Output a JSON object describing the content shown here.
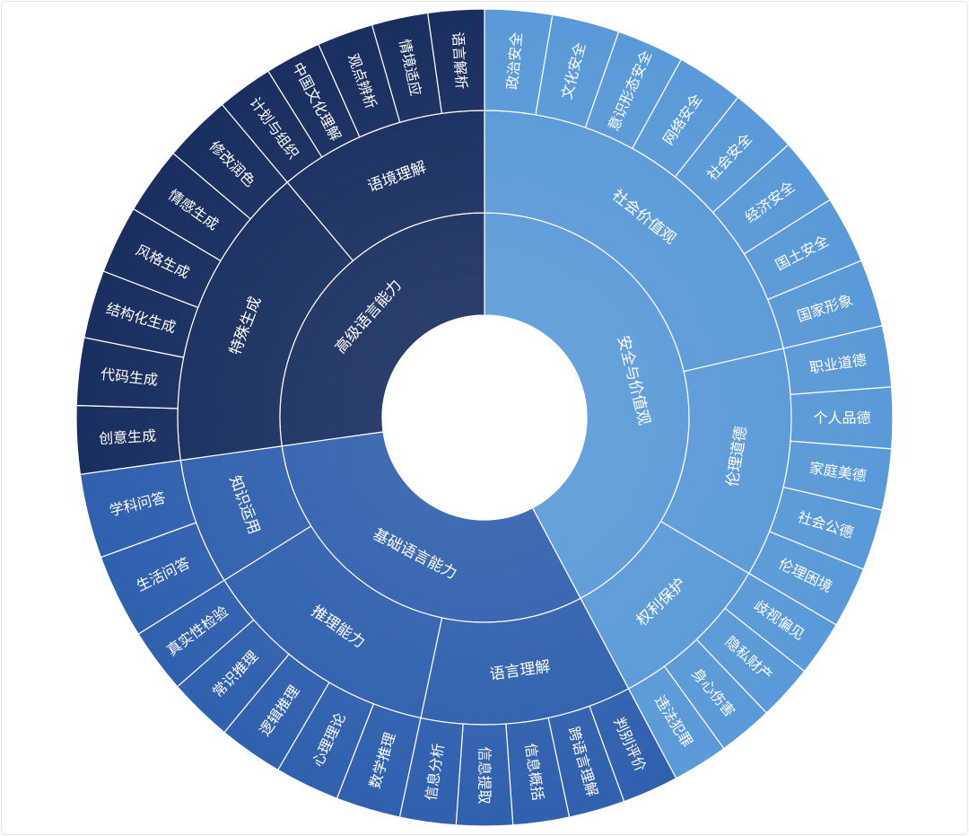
{
  "chart_data": {
    "type": "sunburst",
    "title": "",
    "colors": {
      "安全与价值观": "#5a9ad8",
      "基础语言能力": "#3160ad",
      "高级语言能力": "#1a2f5f",
      "separator": "#ffffff",
      "center": "#ffffff"
    },
    "angle_unit": "degrees clockwise from 12 o'clock",
    "root": {
      "children": [
        {
          "name": "安全与价值观",
          "start": 0,
          "end": 152,
          "children": [
            {
              "name": "社会价值观",
              "start": 0,
              "end": 77,
              "children": [
                {
                  "name": "政治安全",
                  "start": 0,
                  "end": 9.6
                },
                {
                  "name": "文化安全",
                  "start": 9.6,
                  "end": 19.2
                },
                {
                  "name": "意识形态安全",
                  "start": 19.2,
                  "end": 28.8
                },
                {
                  "name": "网络安全",
                  "start": 28.8,
                  "end": 38.4
                },
                {
                  "name": "社会安全",
                  "start": 38.4,
                  "end": 48.1
                },
                {
                  "name": "经济安全",
                  "start": 48.1,
                  "end": 57.8
                },
                {
                  "name": "国土安全",
                  "start": 57.8,
                  "end": 67.4
                },
                {
                  "name": "国家形象",
                  "start": 67.4,
                  "end": 77
                }
              ]
            },
            {
              "name": "伦理道德",
              "start": 77,
              "end": 120.5,
              "children": [
                {
                  "name": "职业道德",
                  "start": 77,
                  "end": 85.7
                },
                {
                  "name": "个人品德",
                  "start": 85.7,
                  "end": 94.4
                },
                {
                  "name": "家庭美德",
                  "start": 94.4,
                  "end": 103.1
                },
                {
                  "name": "社会公德",
                  "start": 103.1,
                  "end": 111.8
                },
                {
                  "name": "伦理困境",
                  "start": 111.8,
                  "end": 120.5
                }
              ]
            },
            {
              "name": "权利保护",
              "start": 120.5,
              "end": 152,
              "children": [
                {
                  "name": "歧视偏见",
                  "start": 120.5,
                  "end": 128.4
                },
                {
                  "name": "隐私财产",
                  "start": 128.4,
                  "end": 136.3
                },
                {
                  "name": "身心伤害",
                  "start": 136.3,
                  "end": 144.1
                },
                {
                  "name": "违法犯罪",
                  "start": 144.1,
                  "end": 152
                }
              ]
            }
          ]
        },
        {
          "name": "基础语言能力",
          "start": 152,
          "end": 262,
          "children": [
            {
              "name": "语言理解",
              "start": 152,
              "end": 192,
              "children": [
                {
                  "name": "判别评价",
                  "start": 152,
                  "end": 160
                },
                {
                  "name": "跨语言理解",
                  "start": 160,
                  "end": 168
                },
                {
                  "name": "信息概括",
                  "start": 168,
                  "end": 176
                },
                {
                  "name": "信息提取",
                  "start": 176,
                  "end": 184
                },
                {
                  "name": "信息分析",
                  "start": 184,
                  "end": 192
                }
              ]
            },
            {
              "name": "推理能力",
              "start": 192,
              "end": 238,
              "children": [
                {
                  "name": "数学推理",
                  "start": 192,
                  "end": 201.2
                },
                {
                  "name": "心理理论",
                  "start": 201.2,
                  "end": 210.4
                },
                {
                  "name": "逻辑推理",
                  "start": 210.4,
                  "end": 219.6
                },
                {
                  "name": "常识推理",
                  "start": 219.6,
                  "end": 228.8
                },
                {
                  "name": "真实性检验",
                  "start": 228.8,
                  "end": 238
                }
              ]
            },
            {
              "name": "知识运用",
              "start": 238,
              "end": 262,
              "children": [
                {
                  "name": "生活问答",
                  "start": 238,
                  "end": 250
                },
                {
                  "name": "学科问答",
                  "start": 250,
                  "end": 262
                }
              ]
            }
          ]
        },
        {
          "name": "高级语言能力",
          "start": 262,
          "end": 360,
          "children": [
            {
              "name": "特殊生成",
              "start": 262,
              "end": 320,
              "children": [
                {
                  "name": "创意生成",
                  "start": 262,
                  "end": 271.7
                },
                {
                  "name": "代码生成",
                  "start": 271.7,
                  "end": 281.3
                },
                {
                  "name": "结构化生成",
                  "start": 281.3,
                  "end": 291
                },
                {
                  "name": "风格生成",
                  "start": 291,
                  "end": 300.7
                },
                {
                  "name": "情感生成",
                  "start": 300.7,
                  "end": 310.3
                },
                {
                  "name": "修改润色",
                  "start": 310.3,
                  "end": 320
                }
              ]
            },
            {
              "name": "语境理解",
              "start": 320,
              "end": 360,
              "children": [
                {
                  "name": "计划与组织",
                  "start": 320,
                  "end": 328
                },
                {
                  "name": "中国文化理解",
                  "start": 328,
                  "end": 336
                },
                {
                  "name": "观点辨析",
                  "start": 336,
                  "end": 344
                },
                {
                  "name": "情境适应",
                  "start": 344,
                  "end": 352
                },
                {
                  "name": "语言解析",
                  "start": 352,
                  "end": 360
                }
              ]
            }
          ]
        }
      ]
    }
  }
}
